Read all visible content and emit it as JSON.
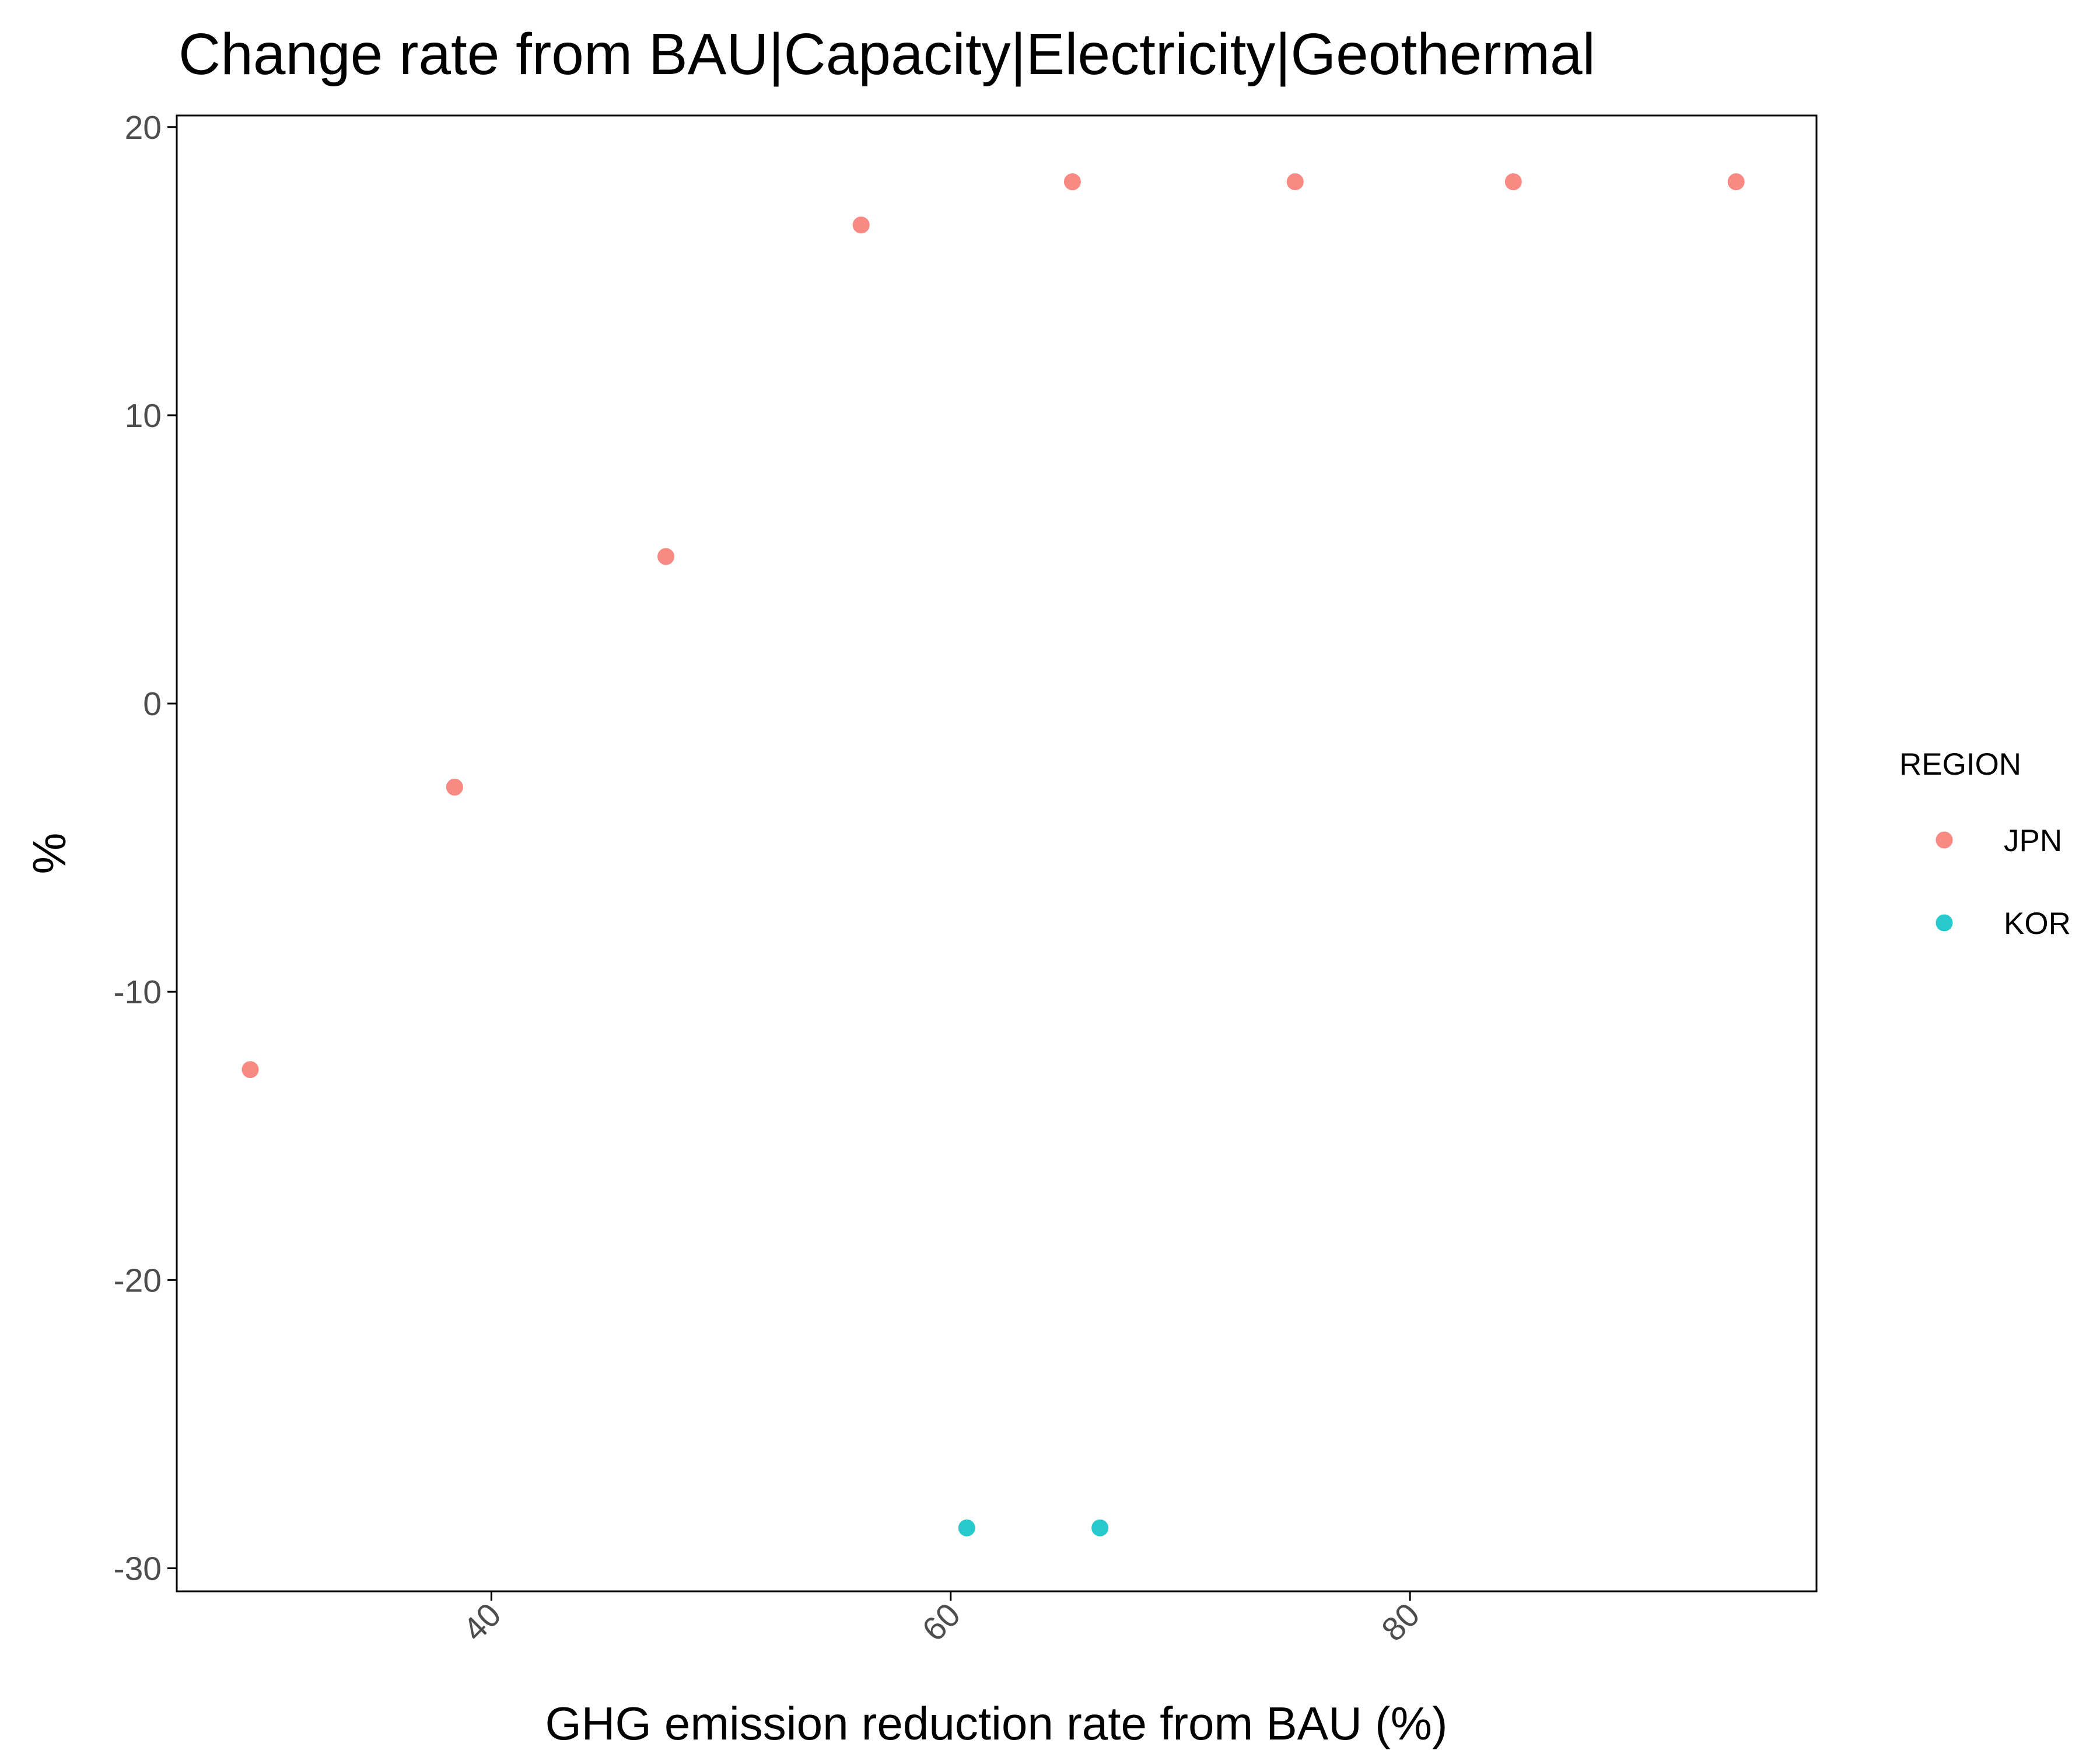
{
  "chart_data": {
    "type": "scatter",
    "title": "Change rate from BAU|Capacity|Electricity|Geothermal",
    "xlabel": "GHG emission reduction rate from BAU (%)",
    "ylabel": "%",
    "xlim": [
      26.3,
      97.7
    ],
    "ylim": [
      -30.8,
      20.4
    ],
    "x_ticks": [
      40,
      60,
      80
    ],
    "y_ticks": [
      -30,
      -20,
      -10,
      0,
      10,
      20
    ],
    "grid": false,
    "legend": {
      "title": "REGION",
      "position": "right"
    },
    "series": [
      {
        "name": "JPN",
        "color": "#F8766D",
        "points": [
          {
            "x": 29.5,
            "y": -12.7
          },
          {
            "x": 38.4,
            "y": -2.9
          },
          {
            "x": 47.6,
            "y": 5.1
          },
          {
            "x": 56.1,
            "y": 16.6
          },
          {
            "x": 65.3,
            "y": 18.1
          },
          {
            "x": 75.0,
            "y": 18.1
          },
          {
            "x": 84.5,
            "y": 18.1
          },
          {
            "x": 94.2,
            "y": 18.1
          }
        ]
      },
      {
        "name": "KOR",
        "color": "#00BFC4",
        "points": [
          {
            "x": 60.7,
            "y": -28.6
          },
          {
            "x": 66.5,
            "y": -28.6
          }
        ]
      }
    ]
  }
}
